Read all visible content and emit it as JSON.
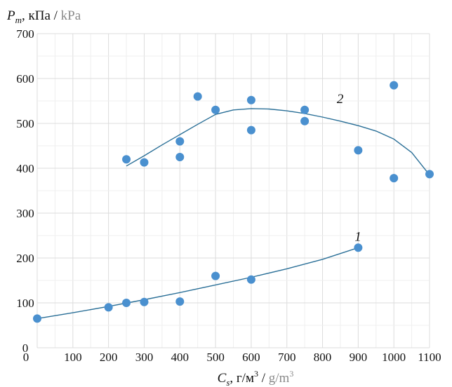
{
  "chart_data": {
    "type": "scatter",
    "ylabel": {
      "sym": "P",
      "sub": "m",
      "ru": ", кПа / ",
      "en": "kPa"
    },
    "xlabel": {
      "sym": "C",
      "sub": "s",
      "ru": ", г/м",
      "sup": "3",
      "sep": " / ",
      "en": "g/m",
      "en_sup": "3"
    },
    "xlim": [
      0,
      1100
    ],
    "ylim": [
      0,
      700
    ],
    "x_ticks": [
      0,
      100,
      200,
      300,
      400,
      500,
      600,
      700,
      800,
      900,
      1000,
      1100
    ],
    "y_ticks": [
      0,
      100,
      200,
      300,
      400,
      500,
      600,
      700
    ],
    "grid": true,
    "marker_color": "#4a90cf",
    "curve_color": "#2a6f97",
    "series": [
      {
        "name": "1",
        "points": [
          [
            0,
            65
          ],
          [
            200,
            90
          ],
          [
            250,
            100
          ],
          [
            300,
            102
          ],
          [
            400,
            103
          ],
          [
            500,
            160
          ],
          [
            600,
            152
          ],
          [
            900,
            223
          ]
        ],
        "curve": [
          [
            0,
            65
          ],
          [
            100,
            78
          ],
          [
            200,
            92
          ],
          [
            300,
            107
          ],
          [
            400,
            123
          ],
          [
            500,
            140
          ],
          [
            600,
            157
          ],
          [
            700,
            176
          ],
          [
            800,
            197
          ],
          [
            900,
            223
          ]
        ]
      },
      {
        "name": "2",
        "points": [
          [
            250,
            420
          ],
          [
            300,
            413
          ],
          [
            400,
            460
          ],
          [
            400,
            425
          ],
          [
            450,
            560
          ],
          [
            500,
            530
          ],
          [
            600,
            552
          ],
          [
            600,
            485
          ],
          [
            750,
            530
          ],
          [
            750,
            505
          ],
          [
            900,
            440
          ],
          [
            1000,
            585
          ],
          [
            1000,
            378
          ],
          [
            1100,
            387
          ]
        ],
        "curve": [
          [
            250,
            405
          ],
          [
            300,
            428
          ],
          [
            350,
            452
          ],
          [
            400,
            475
          ],
          [
            450,
            498
          ],
          [
            500,
            520
          ],
          [
            550,
            530
          ],
          [
            600,
            533
          ],
          [
            650,
            532
          ],
          [
            700,
            528
          ],
          [
            750,
            522
          ],
          [
            800,
            514
          ],
          [
            850,
            505
          ],
          [
            900,
            495
          ],
          [
            950,
            483
          ],
          [
            1000,
            465
          ],
          [
            1050,
            435
          ],
          [
            1100,
            385
          ]
        ]
      }
    ]
  }
}
